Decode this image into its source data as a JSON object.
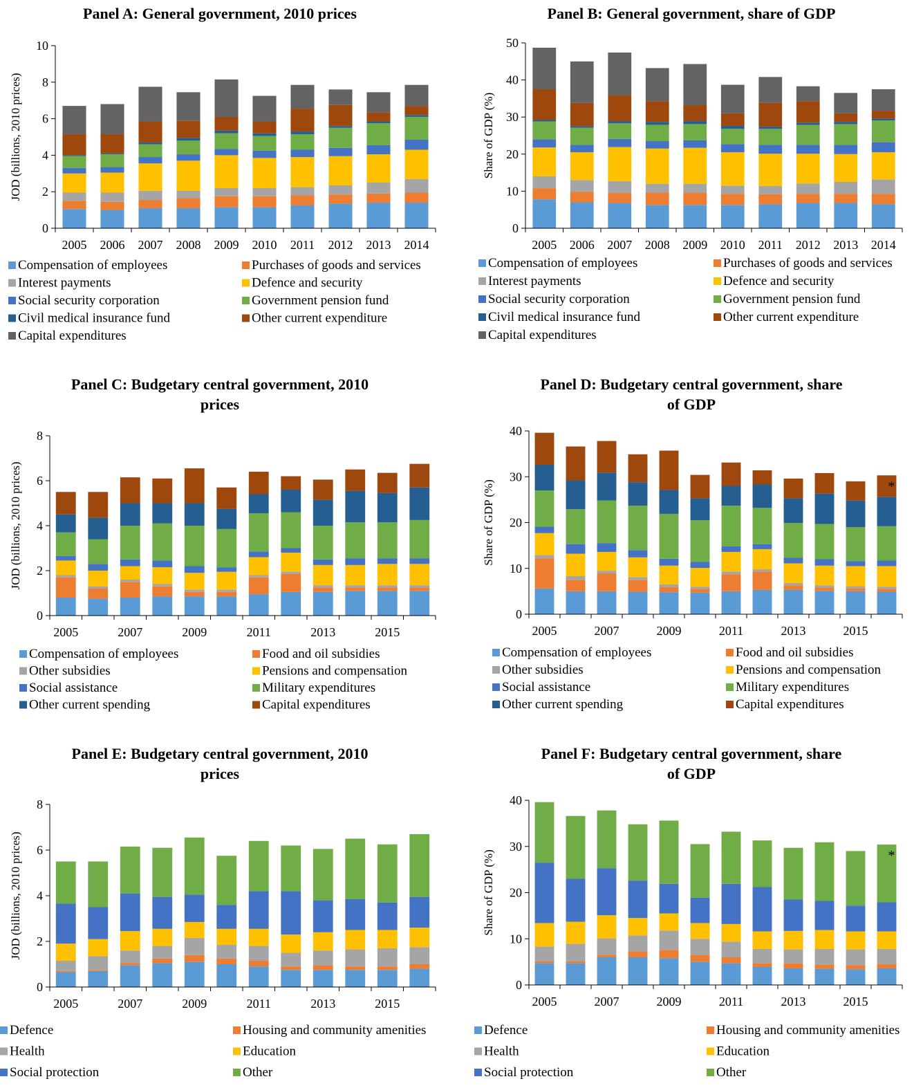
{
  "colors": {
    "comp": "#5b9bd5",
    "orange": "#ed7d31",
    "gray": "#a5a5a5",
    "yellow": "#ffc000",
    "blue": "#4472c4",
    "green": "#70ad47",
    "darkblue": "#255e91",
    "brown": "#9e480e",
    "darkgray": "#636363"
  },
  "chart_data": [
    {
      "type": "bar",
      "stacked": true,
      "title_lines": [
        "Panel A: General government, 2010 prices"
      ],
      "ylabel": "JOD (billions, 2010 prices)",
      "ylim": [
        0,
        10
      ],
      "yticks": [
        0,
        2,
        4,
        6,
        8,
        10
      ],
      "x": [
        2005,
        2006,
        2007,
        2008,
        2009,
        2010,
        2011,
        2012,
        2013,
        2014
      ],
      "xticklabels": [
        "2005",
        "2006",
        "2007",
        "2008",
        "2009",
        "2010",
        "2011",
        "2012",
        "2013",
        "2014"
      ],
      "series": [
        {
          "name": "Compensation of employees",
          "color": "comp",
          "values": [
            1.05,
            1.0,
            1.1,
            1.1,
            1.15,
            1.15,
            1.25,
            1.35,
            1.4,
            1.4
          ]
        },
        {
          "name": "Purchases of goods and services",
          "color": "orange",
          "values": [
            0.45,
            0.45,
            0.45,
            0.55,
            0.6,
            0.6,
            0.55,
            0.5,
            0.5,
            0.55
          ]
        },
        {
          "name": "Interest payments",
          "color": "gray",
          "values": [
            0.45,
            0.5,
            0.5,
            0.4,
            0.45,
            0.45,
            0.45,
            0.5,
            0.6,
            0.75
          ]
        },
        {
          "name": "Defence and security",
          "color": "yellow",
          "values": [
            1.05,
            1.1,
            1.5,
            1.65,
            1.8,
            1.65,
            1.65,
            1.6,
            1.55,
            1.6
          ]
        },
        {
          "name": "Social security corporation",
          "color": "blue",
          "values": [
            0.3,
            0.3,
            0.35,
            0.35,
            0.35,
            0.4,
            0.4,
            0.45,
            0.5,
            0.55
          ]
        },
        {
          "name": "Government pension fund",
          "color": "green",
          "values": [
            0.65,
            0.7,
            0.7,
            0.75,
            0.85,
            0.8,
            0.85,
            1.1,
            1.2,
            1.25
          ]
        },
        {
          "name": "Civil medical insurance fund",
          "color": "darkblue",
          "values": [
            0.05,
            0.05,
            0.1,
            0.15,
            0.15,
            0.15,
            0.15,
            0.1,
            0.1,
            0.1
          ]
        },
        {
          "name": "Other current expenditure",
          "color": "brown",
          "values": [
            1.15,
            1.05,
            1.15,
            0.95,
            0.75,
            0.65,
            1.25,
            1.15,
            0.5,
            0.5
          ]
        },
        {
          "name": "Capital expenditures",
          "color": "darkgray",
          "values": [
            1.55,
            1.65,
            1.9,
            1.55,
            2.05,
            1.4,
            1.3,
            0.85,
            1.1,
            1.15
          ]
        }
      ],
      "legend_columns": 2,
      "legend_position": "bottom",
      "grid": false
    },
    {
      "type": "bar",
      "stacked": true,
      "title_lines": [
        "Panel B: General government, share of GDP"
      ],
      "ylabel": "Share of GDP (%)",
      "ylim": [
        0,
        50
      ],
      "yticks": [
        0,
        10,
        20,
        30,
        40,
        50
      ],
      "x": [
        2005,
        2006,
        2007,
        2008,
        2009,
        2010,
        2011,
        2012,
        2013,
        2014
      ],
      "xticklabels": [
        "2005",
        "2006",
        "2007",
        "2008",
        "2009",
        "2010",
        "2011",
        "2012",
        "2013",
        "2014"
      ],
      "series": [
        {
          "name": "Compensation of employees",
          "color": "comp",
          "values": [
            7.8,
            7.0,
            6.8,
            6.3,
            6.3,
            6.3,
            6.5,
            6.8,
            6.8,
            6.5
          ]
        },
        {
          "name": "Purchases of goods and services",
          "color": "orange",
          "values": [
            3.0,
            2.8,
            2.7,
            3.3,
            3.3,
            3.0,
            2.7,
            2.5,
            2.5,
            2.8
          ]
        },
        {
          "name": "Interest payments",
          "color": "gray",
          "values": [
            3.2,
            3.2,
            3.2,
            2.4,
            2.4,
            2.2,
            2.2,
            2.8,
            3.2,
            3.9
          ]
        },
        {
          "name": "Defence and security",
          "color": "yellow",
          "values": [
            7.8,
            7.5,
            9.2,
            9.5,
            9.7,
            9.0,
            8.7,
            8.0,
            7.5,
            7.3
          ]
        },
        {
          "name": "Social security corporation",
          "color": "blue",
          "values": [
            2.2,
            2.0,
            2.2,
            2.0,
            2.0,
            2.2,
            2.4,
            2.4,
            2.5,
            2.7
          ]
        },
        {
          "name": "Government pension fund",
          "color": "green",
          "values": [
            4.8,
            4.6,
            4.2,
            4.4,
            4.4,
            4.1,
            4.3,
            5.4,
            5.6,
            5.9
          ]
        },
        {
          "name": "Civil medical insurance fund",
          "color": "darkblue",
          "values": [
            0.4,
            0.4,
            0.6,
            0.8,
            0.8,
            0.8,
            0.6,
            0.6,
            0.6,
            0.5
          ]
        },
        {
          "name": "Other current expenditure",
          "color": "brown",
          "values": [
            8.3,
            6.3,
            7.0,
            5.6,
            4.3,
            3.4,
            6.4,
            5.8,
            2.3,
            2.1
          ]
        },
        {
          "name": "Capital expenditures",
          "color": "darkgray",
          "values": [
            11.2,
            11.2,
            11.5,
            8.9,
            11.1,
            7.7,
            7.0,
            4.0,
            5.5,
            5.8
          ]
        }
      ],
      "legend_columns": 2,
      "legend_position": "bottom",
      "grid": false
    },
    {
      "type": "bar",
      "stacked": true,
      "title_lines": [
        "Panel C: Budgetary central government, 2010",
        "prices"
      ],
      "ylabel": "JOD (billions, 2010 prices)",
      "ylim": [
        0,
        8
      ],
      "yticks": [
        0,
        2,
        4,
        6,
        8
      ],
      "x": [
        2005,
        2006,
        2007,
        2008,
        2009,
        2010,
        2011,
        2012,
        2013,
        2014,
        2015,
        2016
      ],
      "xticklabels": [
        "2005",
        "",
        "2007",
        "",
        "2009",
        "",
        "2011",
        "",
        "2013",
        "",
        "2015",
        ""
      ],
      "series": [
        {
          "name": "Compensation of employees",
          "color": "comp",
          "values": [
            0.8,
            0.75,
            0.8,
            0.85,
            0.85,
            0.85,
            0.95,
            1.05,
            1.05,
            1.1,
            1.1,
            1.1
          ]
        },
        {
          "name": "Food and oil subsidies",
          "color": "orange",
          "values": [
            0.9,
            0.45,
            0.7,
            0.45,
            0.2,
            0.2,
            0.75,
            0.8,
            0.2,
            0.15,
            0.15,
            0.15
          ]
        },
        {
          "name": "Other subsidies",
          "color": "gray",
          "values": [
            0.1,
            0.1,
            0.1,
            0.1,
            0.1,
            0.1,
            0.1,
            0.1,
            0.1,
            0.1,
            0.1,
            0.1
          ]
        },
        {
          "name": "Pensions and compensation",
          "color": "yellow",
          "values": [
            0.65,
            0.7,
            0.6,
            0.75,
            0.75,
            0.8,
            0.8,
            0.85,
            0.9,
            0.9,
            0.95,
            0.95
          ]
        },
        {
          "name": "Social assistance",
          "color": "blue",
          "values": [
            0.2,
            0.3,
            0.3,
            0.3,
            0.3,
            0.2,
            0.25,
            0.2,
            0.25,
            0.3,
            0.25,
            0.25
          ]
        },
        {
          "name": "Military expenditures",
          "color": "green",
          "values": [
            1.05,
            1.1,
            1.5,
            1.65,
            1.8,
            1.7,
            1.7,
            1.6,
            1.5,
            1.6,
            1.6,
            1.7
          ]
        },
        {
          "name": "Other current spending",
          "color": "darkblue",
          "values": [
            0.8,
            0.95,
            1.0,
            0.9,
            1.0,
            0.9,
            0.85,
            1.0,
            1.15,
            1.4,
            1.3,
            1.45
          ]
        },
        {
          "name": "Capital expenditures",
          "color": "brown",
          "values": [
            1.0,
            1.15,
            1.15,
            1.1,
            1.55,
            0.95,
            1.0,
            0.6,
            0.9,
            0.95,
            0.9,
            1.05
          ]
        }
      ],
      "legend_columns": 2,
      "legend_position": "bottom",
      "grid": false
    },
    {
      "type": "bar",
      "stacked": true,
      "title_lines": [
        "Panel D: Budgetary central government, share",
        "of GDP"
      ],
      "ylabel": "Share of GDP (%)",
      "ylim": [
        0,
        40
      ],
      "yticks": [
        0,
        10,
        20,
        30,
        40
      ],
      "x": [
        2005,
        2006,
        2007,
        2008,
        2009,
        2010,
        2011,
        2012,
        2013,
        2014,
        2015,
        2016
      ],
      "xticklabels": [
        "2005",
        "",
        "2007",
        "",
        "2009",
        "",
        "2011",
        "",
        "2013",
        "",
        "2015",
        ""
      ],
      "series": [
        {
          "name": "Compensation of employees",
          "color": "comp",
          "values": [
            5.6,
            5.0,
            5.0,
            4.9,
            4.8,
            4.7,
            5.0,
            5.3,
            5.3,
            5.1,
            5.0,
            4.9
          ]
        },
        {
          "name": "Food and oil subsidies",
          "color": "orange",
          "values": [
            6.6,
            2.5,
            3.9,
            2.6,
            1.1,
            0.8,
            3.7,
            4.0,
            1.0,
            0.7,
            0.6,
            0.6
          ]
        },
        {
          "name": "Other subsidies",
          "color": "gray",
          "values": [
            0.7,
            0.8,
            0.6,
            0.6,
            0.6,
            0.5,
            0.6,
            0.5,
            0.5,
            0.5,
            0.5,
            0.5
          ]
        },
        {
          "name": "Pensions and compensation",
          "color": "yellow",
          "values": [
            4.8,
            4.9,
            4.1,
            4.3,
            4.1,
            4.1,
            4.3,
            4.4,
            4.3,
            4.3,
            4.4,
            4.5
          ]
        },
        {
          "name": "Social assistance",
          "color": "blue",
          "values": [
            1.4,
            2.1,
            1.9,
            1.6,
            1.5,
            1.3,
            1.2,
            1.1,
            1.2,
            1.4,
            1.1,
            1.2
          ]
        },
        {
          "name": "Military expenditures",
          "color": "green",
          "values": [
            7.9,
            7.6,
            9.3,
            9.7,
            9.8,
            9.1,
            8.9,
            7.9,
            7.6,
            7.7,
            7.4,
            7.5
          ]
        },
        {
          "name": "Other current spending",
          "color": "darkblue",
          "values": [
            5.6,
            6.3,
            6.1,
            5.1,
            5.2,
            4.8,
            4.3,
            5.1,
            5.4,
            6.6,
            5.8,
            6.4
          ]
        },
        {
          "name": "Capital expenditures",
          "color": "brown",
          "values": [
            7.0,
            7.4,
            6.9,
            6.1,
            8.6,
            5.1,
            5.1,
            3.1,
            4.3,
            4.5,
            4.2,
            4.7
          ]
        }
      ],
      "annotation": "*",
      "legend_columns": 2,
      "legend_position": "bottom",
      "grid": false
    },
    {
      "type": "bar",
      "stacked": true,
      "title_lines": [
        "Panel E: Budgetary central government, 2010",
        "prices"
      ],
      "ylabel": "JOD (billions, 2010 prices)",
      "ylim": [
        0,
        8
      ],
      "yticks": [
        0,
        2,
        4,
        6,
        8
      ],
      "x": [
        2005,
        2006,
        2007,
        2008,
        2009,
        2010,
        2011,
        2012,
        2013,
        2014,
        2015,
        2016
      ],
      "xticklabels": [
        "2005",
        "",
        "2007",
        "",
        "2009",
        "",
        "2011",
        "",
        "2013",
        "",
        "2015",
        ""
      ],
      "series": [
        {
          "name": "Defence",
          "color": "comp",
          "values": [
            0.65,
            0.7,
            0.95,
            1.05,
            1.1,
            1.0,
            0.9,
            0.75,
            0.75,
            0.75,
            0.75,
            0.8
          ]
        },
        {
          "name": "Housing and community amenities",
          "color": "orange",
          "values": [
            0.05,
            0.05,
            0.1,
            0.2,
            0.3,
            0.25,
            0.25,
            0.15,
            0.2,
            0.15,
            0.15,
            0.2
          ]
        },
        {
          "name": "Health",
          "color": "gray",
          "values": [
            0.45,
            0.6,
            0.55,
            0.55,
            0.75,
            0.6,
            0.65,
            0.6,
            0.65,
            0.75,
            0.8,
            0.75
          ]
        },
        {
          "name": "Education",
          "color": "yellow",
          "values": [
            0.75,
            0.75,
            0.85,
            0.75,
            0.7,
            0.7,
            0.75,
            0.8,
            0.8,
            0.85,
            0.8,
            0.85
          ]
        },
        {
          "name": "Social protection",
          "color": "blue",
          "values": [
            1.75,
            1.4,
            1.65,
            1.4,
            1.2,
            1.05,
            1.65,
            1.9,
            1.4,
            1.35,
            1.2,
            1.35
          ]
        },
        {
          "name": "Other",
          "color": "green",
          "values": [
            1.85,
            2.0,
            2.05,
            2.15,
            2.5,
            2.15,
            2.2,
            2.0,
            2.25,
            2.65,
            2.55,
            2.75
          ]
        }
      ],
      "legend_columns": 2,
      "legend_position": "bottom",
      "grid": false
    },
    {
      "type": "bar",
      "stacked": true,
      "title_lines": [
        "Panel F: Budgetary central government, share",
        "of GDP"
      ],
      "ylabel": "Share of GDP (%)",
      "ylim": [
        0,
        40
      ],
      "yticks": [
        0,
        10,
        20,
        30,
        40
      ],
      "x": [
        2005,
        2006,
        2007,
        2008,
        2009,
        2010,
        2011,
        2012,
        2013,
        2014,
        2015,
        2016
      ],
      "xticklabels": [
        "2005",
        "",
        "2007",
        "",
        "2009",
        "",
        "2011",
        "",
        "2013",
        "",
        "2015",
        ""
      ],
      "series": [
        {
          "name": "Defence",
          "color": "comp",
          "values": [
            4.7,
            4.7,
            6.0,
            6.0,
            5.8,
            5.0,
            4.7,
            3.9,
            3.6,
            3.5,
            3.4,
            3.6
          ]
        },
        {
          "name": "Housing and community amenities",
          "color": "orange",
          "values": [
            0.4,
            0.4,
            0.5,
            1.3,
            1.8,
            1.5,
            1.3,
            0.8,
            1.1,
            0.9,
            0.9,
            0.9
          ]
        },
        {
          "name": "Health",
          "color": "gray",
          "values": [
            3.2,
            3.8,
            3.6,
            3.4,
            4.2,
            3.5,
            3.4,
            3.1,
            3.0,
            3.4,
            3.4,
            3.3
          ]
        },
        {
          "name": "Education",
          "color": "yellow",
          "values": [
            5.1,
            4.8,
            5.0,
            3.8,
            3.7,
            3.4,
            3.8,
            3.8,
            4.0,
            4.1,
            3.9,
            3.8
          ]
        },
        {
          "name": "Social protection",
          "color": "blue",
          "values": [
            13.1,
            9.3,
            10.2,
            8.1,
            6.4,
            5.5,
            8.7,
            9.6,
            6.8,
            6.3,
            5.6,
            6.3
          ]
        },
        {
          "name": "Other",
          "color": "green",
          "values": [
            13.1,
            13.6,
            12.5,
            12.2,
            13.7,
            11.6,
            11.3,
            10.1,
            11.2,
            12.7,
            11.8,
            12.5
          ]
        }
      ],
      "annotation": "*",
      "legend_columns": 2,
      "legend_position": "bottom",
      "grid": false
    }
  ]
}
